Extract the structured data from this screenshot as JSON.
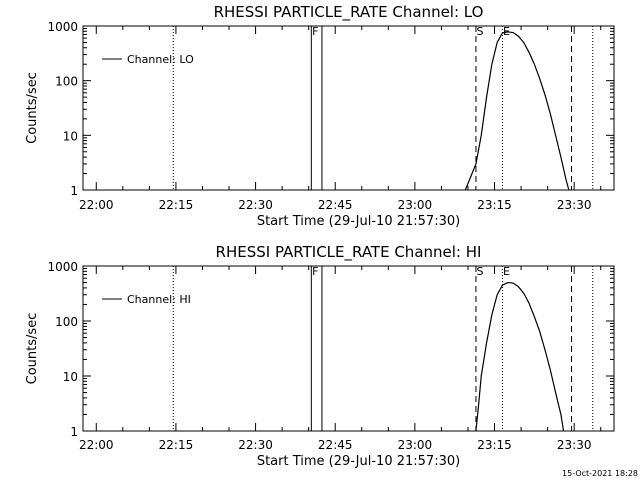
{
  "footer_timestamp": "15-Oct-2021 18:28",
  "chart_data": [
    {
      "type": "line",
      "title": "RHESSI PARTICLE_RATE Channel: LO",
      "xlabel": "Start Time (29-Jul-10 21:57:30)",
      "ylabel": "Counts/sec",
      "y_scale": "log",
      "ylim": [
        1,
        1000
      ],
      "xlim": [
        "21:57:30",
        "23:37:30"
      ],
      "x_ticks": [
        "22:00",
        "22:15",
        "22:30",
        "22:45",
        "23:00",
        "23:15",
        "23:30"
      ],
      "y_ticks": [
        "1",
        "10",
        "100",
        "1000"
      ],
      "legend": {
        "position": "top-left",
        "entries": [
          "Channel: LO"
        ]
      },
      "series": [
        {
          "name": "Channel: LO",
          "points": [
            {
              "t": "23:09:30",
              "y": 1
            },
            {
              "t": "23:11:30",
              "y": 3
            },
            {
              "t": "23:12:30",
              "y": 10
            },
            {
              "t": "23:13:30",
              "y": 50
            },
            {
              "t": "23:14:30",
              "y": 200
            },
            {
              "t": "23:15:30",
              "y": 500
            },
            {
              "t": "23:16:30",
              "y": 750
            },
            {
              "t": "23:17:30",
              "y": 780
            },
            {
              "t": "23:18:30",
              "y": 760
            },
            {
              "t": "23:19:30",
              "y": 650
            },
            {
              "t": "23:20:30",
              "y": 500
            },
            {
              "t": "23:21:30",
              "y": 330
            },
            {
              "t": "23:22:30",
              "y": 200
            },
            {
              "t": "23:23:30",
              "y": 110
            },
            {
              "t": "23:24:30",
              "y": 55
            },
            {
              "t": "23:25:30",
              "y": 25
            },
            {
              "t": "23:26:30",
              "y": 10
            },
            {
              "t": "23:27:30",
              "y": 4
            },
            {
              "t": "23:28:30",
              "y": 1.5
            },
            {
              "t": "23:29:00",
              "y": 1
            }
          ]
        }
      ],
      "vertical_lines": [
        {
          "t": "22:14:30",
          "style": "dotted",
          "label": ""
        },
        {
          "t": "22:40:30",
          "style": "solid",
          "label": "F"
        },
        {
          "t": "22:42:30",
          "style": "solid",
          "label": ""
        },
        {
          "t": "23:11:30",
          "style": "dashed",
          "label": "S"
        },
        {
          "t": "23:16:30",
          "style": "dotted",
          "label": "E"
        },
        {
          "t": "23:29:30",
          "style": "dashed",
          "label": ""
        },
        {
          "t": "23:33:30",
          "style": "dotted",
          "label": ""
        }
      ]
    },
    {
      "type": "line",
      "title": "RHESSI PARTICLE_RATE Channel: HI",
      "xlabel": "Start Time (29-Jul-10 21:57:30)",
      "ylabel": "Counts/sec",
      "y_scale": "log",
      "ylim": [
        1,
        1000
      ],
      "xlim": [
        "21:57:30",
        "23:37:30"
      ],
      "x_ticks": [
        "22:00",
        "22:15",
        "22:30",
        "22:45",
        "23:00",
        "23:15",
        "23:30"
      ],
      "y_ticks": [
        "1",
        "10",
        "100",
        "1000"
      ],
      "legend": {
        "position": "top-left",
        "entries": [
          "Channel: HI"
        ]
      },
      "series": [
        {
          "name": "Channel: HI",
          "points": [
            {
              "t": "23:11:30",
              "y": 1
            },
            {
              "t": "23:12:00",
              "y": 3
            },
            {
              "t": "23:12:30",
              "y": 10
            },
            {
              "t": "23:13:30",
              "y": 40
            },
            {
              "t": "23:14:30",
              "y": 130
            },
            {
              "t": "23:15:30",
              "y": 300
            },
            {
              "t": "23:16:30",
              "y": 450
            },
            {
              "t": "23:17:30",
              "y": 500
            },
            {
              "t": "23:18:30",
              "y": 490
            },
            {
              "t": "23:19:30",
              "y": 420
            },
            {
              "t": "23:20:30",
              "y": 320
            },
            {
              "t": "23:21:30",
              "y": 210
            },
            {
              "t": "23:22:30",
              "y": 120
            },
            {
              "t": "23:23:30",
              "y": 65
            },
            {
              "t": "23:24:30",
              "y": 30
            },
            {
              "t": "23:25:30",
              "y": 13
            },
            {
              "t": "23:26:30",
              "y": 5
            },
            {
              "t": "23:27:30",
              "y": 2
            },
            {
              "t": "23:28:00",
              "y": 1
            }
          ]
        }
      ],
      "vertical_lines": [
        {
          "t": "22:14:30",
          "style": "dotted",
          "label": ""
        },
        {
          "t": "22:40:30",
          "style": "solid",
          "label": "F"
        },
        {
          "t": "22:42:30",
          "style": "solid",
          "label": ""
        },
        {
          "t": "23:11:30",
          "style": "dashed",
          "label": "S"
        },
        {
          "t": "23:16:30",
          "style": "dotted",
          "label": "E"
        },
        {
          "t": "23:29:30",
          "style": "dashed",
          "label": ""
        },
        {
          "t": "23:33:30",
          "style": "dotted",
          "label": ""
        }
      ]
    }
  ]
}
